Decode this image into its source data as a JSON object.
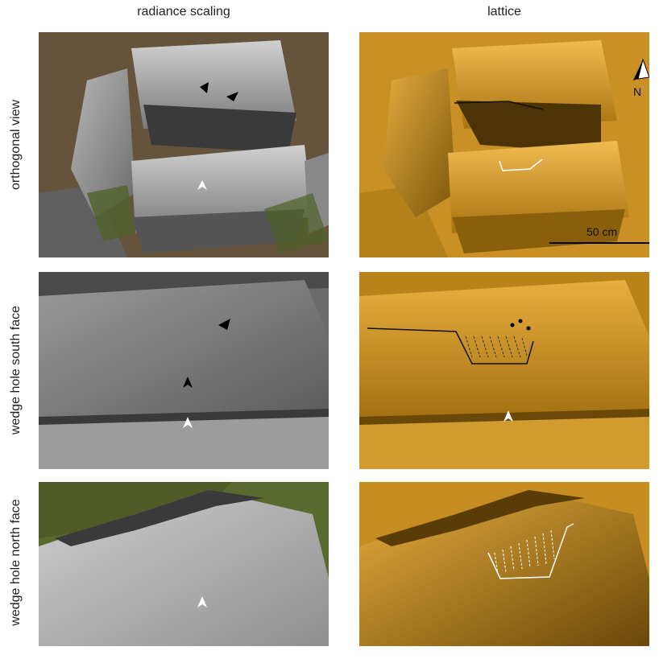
{
  "columns": [
    "radiance scaling",
    "lattice"
  ],
  "rows": [
    "orthogonal view",
    "wedge hole south face",
    "wedge hole north face"
  ],
  "scale_bar": "50 cm",
  "north_label": "N",
  "colors": {
    "radiance_dark": "#3f3f3f",
    "radiance_mid": "#8a8a8a",
    "radiance_light": "#c9c9c9",
    "moss": "#5a6a2a",
    "lattice_dark": "#5a3c08",
    "lattice_mid": "#b07a14",
    "lattice_light": "#e9b34a"
  }
}
